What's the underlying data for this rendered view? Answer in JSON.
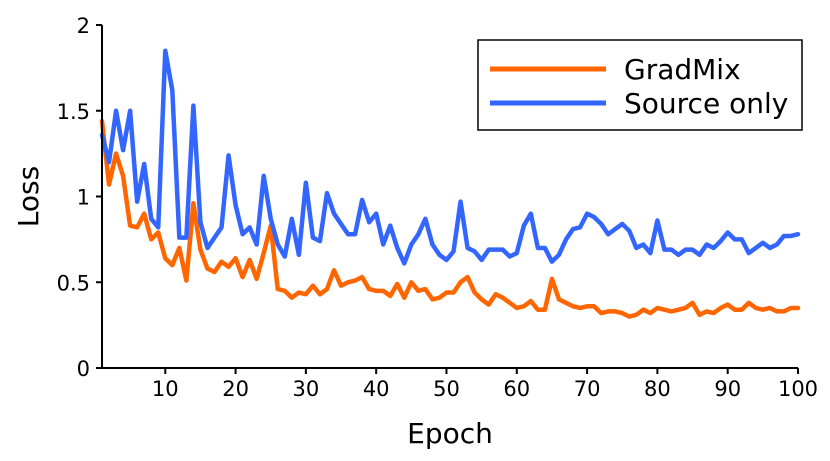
{
  "chart_data": {
    "type": "line",
    "title": "",
    "xlabel": "Epoch",
    "ylabel": "Loss",
    "xlim": [
      1,
      100
    ],
    "ylim": [
      0,
      2
    ],
    "xticks": [
      10,
      20,
      30,
      40,
      50,
      60,
      70,
      80,
      90,
      100
    ],
    "xtick_labels": [
      "10",
      "20",
      "30",
      "40",
      "50",
      "60",
      "70",
      "80",
      "90",
      "100"
    ],
    "yticks": [
      0,
      0.5,
      1,
      1.5,
      2
    ],
    "ytick_labels": [
      "0",
      "0.5",
      "1",
      "1.5",
      "2"
    ],
    "grid": false,
    "legend_position": "top-right",
    "x": [
      1,
      2,
      3,
      4,
      5,
      6,
      7,
      8,
      9,
      10,
      11,
      12,
      13,
      14,
      15,
      16,
      17,
      18,
      19,
      20,
      21,
      22,
      23,
      24,
      25,
      26,
      27,
      28,
      29,
      30,
      31,
      32,
      33,
      34,
      35,
      36,
      37,
      38,
      39,
      40,
      41,
      42,
      43,
      44,
      45,
      46,
      47,
      48,
      49,
      50,
      51,
      52,
      53,
      54,
      55,
      56,
      57,
      58,
      59,
      60,
      61,
      62,
      63,
      64,
      65,
      66,
      67,
      68,
      69,
      70,
      71,
      72,
      73,
      74,
      75,
      76,
      77,
      78,
      79,
      80,
      81,
      82,
      83,
      84,
      85,
      86,
      87,
      88,
      89,
      90,
      91,
      92,
      93,
      94,
      95,
      96,
      97,
      98,
      99,
      100
    ],
    "series": [
      {
        "name": "GradMix",
        "color": "#ff6600",
        "values": [
          1.44,
          1.07,
          1.25,
          1.12,
          0.83,
          0.82,
          0.9,
          0.75,
          0.79,
          0.64,
          0.6,
          0.7,
          0.51,
          0.96,
          0.69,
          0.58,
          0.56,
          0.62,
          0.59,
          0.64,
          0.53,
          0.63,
          0.52,
          0.67,
          0.83,
          0.46,
          0.45,
          0.41,
          0.44,
          0.43,
          0.48,
          0.43,
          0.46,
          0.57,
          0.48,
          0.5,
          0.51,
          0.53,
          0.46,
          0.45,
          0.45,
          0.42,
          0.49,
          0.41,
          0.5,
          0.45,
          0.46,
          0.4,
          0.41,
          0.44,
          0.44,
          0.5,
          0.53,
          0.44,
          0.4,
          0.37,
          0.43,
          0.41,
          0.38,
          0.35,
          0.36,
          0.39,
          0.34,
          0.34,
          0.52,
          0.4,
          0.38,
          0.36,
          0.35,
          0.36,
          0.36,
          0.32,
          0.33,
          0.33,
          0.32,
          0.3,
          0.31,
          0.34,
          0.32,
          0.35,
          0.34,
          0.33,
          0.34,
          0.35,
          0.38,
          0.31,
          0.33,
          0.32,
          0.35,
          0.37,
          0.34,
          0.34,
          0.38,
          0.35,
          0.34,
          0.35,
          0.33,
          0.33,
          0.35,
          0.35
        ]
      },
      {
        "name": "Source only",
        "color": "#3366ff",
        "values": [
          1.36,
          1.2,
          1.5,
          1.27,
          1.5,
          0.97,
          1.19,
          0.87,
          0.82,
          1.85,
          1.62,
          0.76,
          0.76,
          1.53,
          0.85,
          0.7,
          0.76,
          0.82,
          1.24,
          0.95,
          0.78,
          0.82,
          0.72,
          1.12,
          0.87,
          0.72,
          0.65,
          0.87,
          0.66,
          1.08,
          0.76,
          0.74,
          1.02,
          0.9,
          0.84,
          0.78,
          0.78,
          0.98,
          0.85,
          0.9,
          0.72,
          0.83,
          0.7,
          0.61,
          0.72,
          0.78,
          0.87,
          0.72,
          0.66,
          0.63,
          0.68,
          0.97,
          0.7,
          0.68,
          0.63,
          0.69,
          0.69,
          0.69,
          0.65,
          0.67,
          0.83,
          0.9,
          0.7,
          0.7,
          0.62,
          0.66,
          0.75,
          0.81,
          0.82,
          0.9,
          0.88,
          0.84,
          0.78,
          0.81,
          0.84,
          0.8,
          0.7,
          0.72,
          0.67,
          0.86,
          0.69,
          0.69,
          0.66,
          0.69,
          0.69,
          0.66,
          0.72,
          0.7,
          0.74,
          0.79,
          0.75,
          0.75,
          0.67,
          0.7,
          0.73,
          0.7,
          0.72,
          0.77,
          0.77,
          0.78
        ]
      }
    ]
  }
}
